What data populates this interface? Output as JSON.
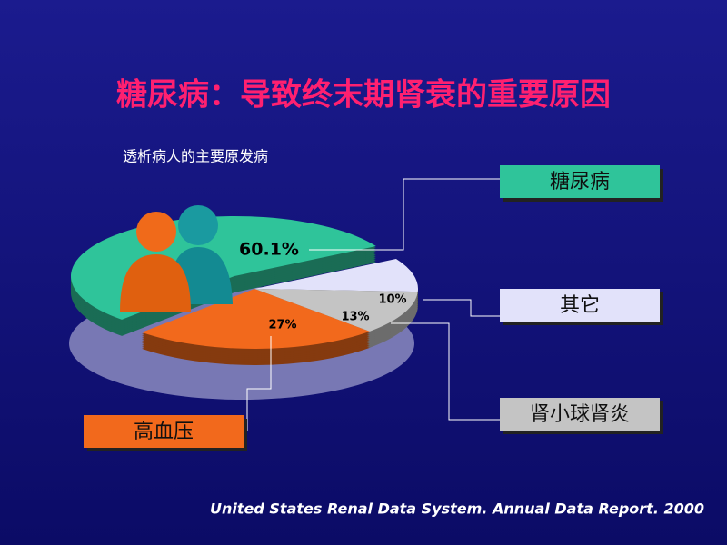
{
  "chart_data": {
    "type": "pie",
    "title": "糖尿病：导致终末期肾衰的重要原因",
    "subtitle": "透析病人的主要原发病",
    "categories": [
      "糖尿病",
      "其它",
      "肾小球肾炎",
      "高血压"
    ],
    "values": [
      60.1,
      10,
      13,
      27
    ],
    "value_labels": [
      "60.1%",
      "10%",
      "13%",
      "27%"
    ],
    "colors": [
      "#2fc49a",
      "#e2e2fa",
      "#c4c4c4",
      "#f2691c"
    ],
    "source": "United States Renal Data System. Annual Data Report. 2000"
  }
}
